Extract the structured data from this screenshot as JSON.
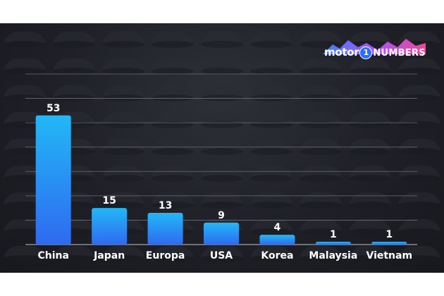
{
  "chart_data": {
    "type": "bar",
    "categories": [
      "China",
      "Japan",
      "Europa",
      "USA",
      "Korea",
      "Malaysia",
      "Vietnam"
    ],
    "values": [
      53,
      15,
      13,
      9,
      4,
      1,
      1
    ],
    "ylim": [
      0,
      70
    ],
    "grid": true,
    "colors": {
      "bar_top": "#22b8f6",
      "bar_bottom": "#2f6af0",
      "background": "#1f2027",
      "text": "#ffffff"
    }
  },
  "logo": {
    "word": "motor",
    "one": "1",
    "suffix": "NUMBERS",
    "colors": [
      "#3b82f6",
      "#a855f7",
      "#ec4899"
    ]
  }
}
